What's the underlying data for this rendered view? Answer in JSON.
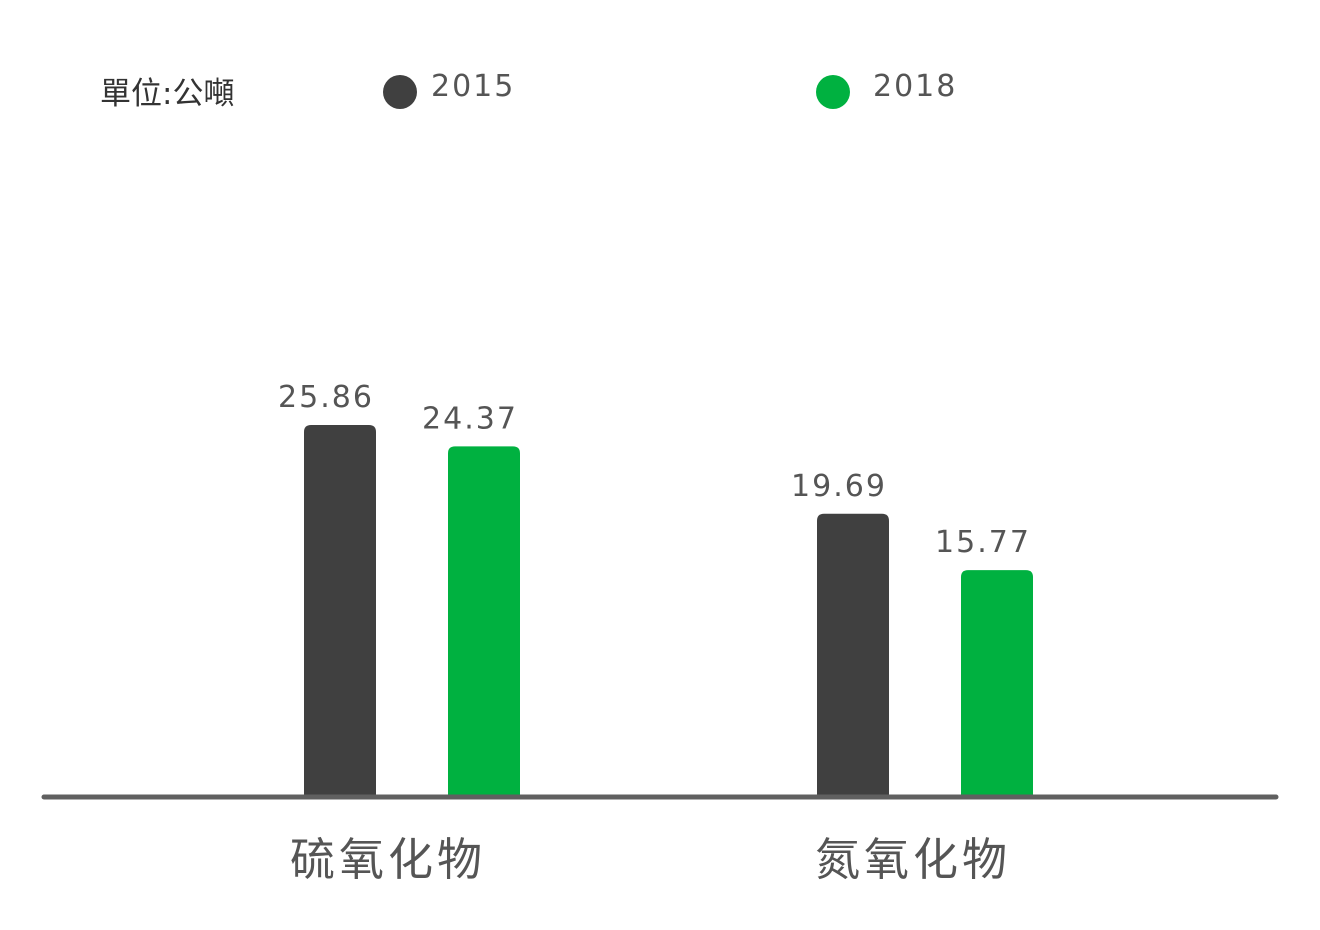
{
  "unit_label": "單位:公噸",
  "colors": {
    "series_2015": "#404040",
    "series_2018": "#00b140",
    "axis": "#606060",
    "text": "#555555"
  },
  "chart_data": {
    "type": "bar",
    "categories": [
      "硫氧化物",
      "氮氧化物"
    ],
    "series": [
      {
        "name": "2015",
        "values": [
          25.86,
          19.69
        ]
      },
      {
        "name": "2018",
        "values": [
          24.37,
          15.77
        ]
      }
    ],
    "data_labels": [
      [
        "25.86",
        "19.69"
      ],
      [
        "24.37",
        "15.77"
      ]
    ],
    "ylim": [
      0,
      25.86
    ],
    "grid": false,
    "legend_position": "top"
  }
}
